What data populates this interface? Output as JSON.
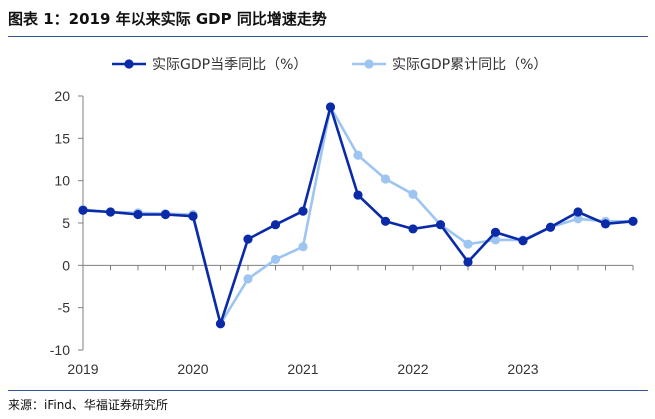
{
  "header": {
    "title": "图表 1：2019 年以来实际 GDP 同比增速走势"
  },
  "footer": {
    "source": "来源：iFind、华福证券研究所"
  },
  "chart_data": {
    "type": "line",
    "title": "图表 1：2019 年以来实际 GDP 同比增速走势",
    "xlabel": "",
    "ylabel": "",
    "ylim": [
      -10,
      20
    ],
    "yticks": [
      -10,
      -5,
      0,
      5,
      10,
      15,
      20
    ],
    "xlim": [
      2019,
      2024
    ],
    "xticks": [
      2019,
      2020,
      2021,
      2022,
      2023
    ],
    "grid": false,
    "legend_position": "top",
    "series": [
      {
        "name": "实际GDP当季同比（%）",
        "color": "#0a2aa8",
        "x": [
          2019.0,
          2019.25,
          2019.5,
          2019.75,
          2020.0,
          2020.25,
          2020.5,
          2020.75,
          2021.0,
          2021.25,
          2021.5,
          2021.75,
          2022.0,
          2022.25,
          2022.5,
          2022.75,
          2023.0,
          2023.25,
          2023.5,
          2023.75,
          2024.0
        ],
        "values": [
          6.5,
          6.3,
          6.0,
          6.0,
          5.8,
          -6.9,
          3.1,
          4.8,
          6.4,
          18.7,
          8.3,
          5.2,
          4.3,
          4.8,
          0.4,
          3.9,
          2.9,
          4.5,
          6.3,
          4.9,
          5.2
        ]
      },
      {
        "name": "实际GDP累计同比（%）",
        "color": "#9ec5f2",
        "x": [
          2019.0,
          2019.25,
          2019.5,
          2019.75,
          2020.0,
          2020.25,
          2020.5,
          2020.75,
          2021.0,
          2021.25,
          2021.5,
          2021.75,
          2022.0,
          2022.25,
          2022.5,
          2022.75,
          2023.0,
          2023.25,
          2023.5,
          2023.75,
          2024.0
        ],
        "values": [
          6.6,
          6.3,
          6.2,
          6.1,
          6.0,
          -6.9,
          -1.6,
          0.7,
          2.2,
          18.7,
          13.0,
          10.2,
          8.4,
          4.8,
          2.5,
          3.0,
          3.0,
          4.5,
          5.5,
          5.2,
          5.2
        ]
      }
    ]
  }
}
